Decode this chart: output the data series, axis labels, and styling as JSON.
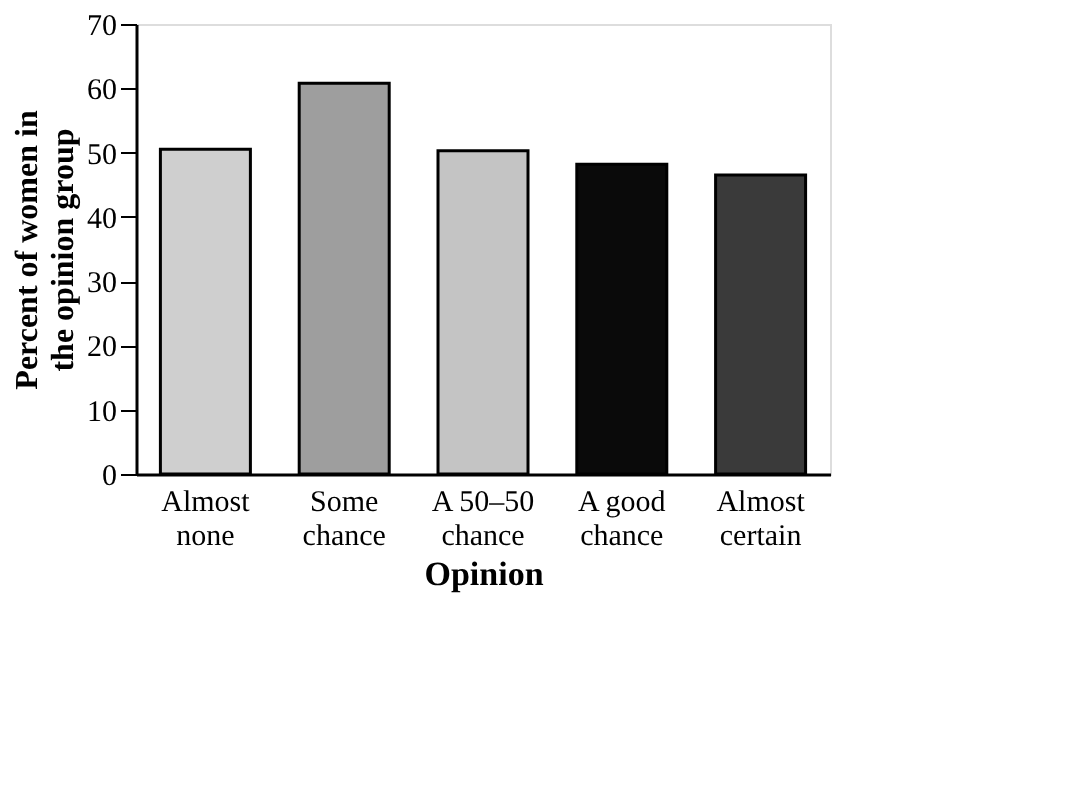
{
  "chart_data": {
    "type": "bar",
    "xlabel": "Opinion",
    "ylabel": "Percent of women in the opinion group",
    "categories": [
      "Almost none",
      "Some chance",
      "A 50–50 chance",
      "A good chance",
      "Almost certain"
    ],
    "values": [
      50.5,
      60.8,
      50.3,
      48.2,
      46.5
    ],
    "colors": [
      "#cfcfcf",
      "#9e9e9e",
      "#c4c4c4",
      "#0a0a0a",
      "#3a3a3a"
    ],
    "ylim": [
      0,
      70
    ],
    "yticks": [
      0,
      10,
      20,
      30,
      40,
      50,
      60,
      70
    ],
    "grid": false
  }
}
